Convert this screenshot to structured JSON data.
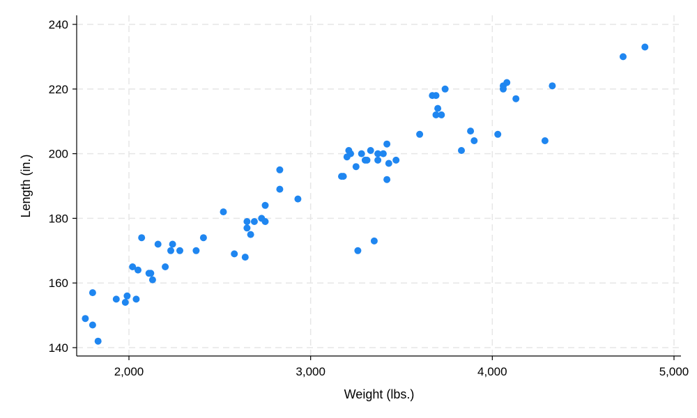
{
  "chart_data": {
    "type": "scatter",
    "title": "",
    "xlabel": "Weight (lbs.)",
    "ylabel": "Length (in.)",
    "xlim": [
      1700,
      5000
    ],
    "ylim": [
      137,
      242
    ],
    "xticks": [
      2000,
      3000,
      4000,
      5000
    ],
    "xtick_labels": [
      "2,000",
      "3,000",
      "4,000",
      "5,000"
    ],
    "yticks": [
      140,
      160,
      180,
      200,
      220,
      240
    ],
    "ytick_labels": [
      "140",
      "160",
      "180",
      "200",
      "220",
      "240"
    ],
    "grid": true,
    "point_color": "#1f86f0",
    "series": [
      {
        "points": [
          [
            1760,
            149
          ],
          [
            1800,
            157
          ],
          [
            1800,
            147
          ],
          [
            1830,
            142
          ],
          [
            1930,
            155
          ],
          [
            1980,
            154
          ],
          [
            1990,
            156
          ],
          [
            2020,
            165
          ],
          [
            2040,
            155
          ],
          [
            2050,
            164
          ],
          [
            2070,
            174
          ],
          [
            2110,
            163
          ],
          [
            2120,
            163
          ],
          [
            2130,
            161
          ],
          [
            2160,
            172
          ],
          [
            2200,
            165
          ],
          [
            2230,
            170
          ],
          [
            2240,
            172
          ],
          [
            2280,
            170
          ],
          [
            2370,
            170
          ],
          [
            2410,
            174
          ],
          [
            2520,
            182
          ],
          [
            2580,
            169
          ],
          [
            2640,
            168
          ],
          [
            2650,
            179
          ],
          [
            2650,
            177
          ],
          [
            2670,
            175
          ],
          [
            2690,
            179
          ],
          [
            2730,
            180
          ],
          [
            2750,
            179
          ],
          [
            2750,
            184
          ],
          [
            2830,
            195
          ],
          [
            2830,
            189
          ],
          [
            2930,
            186
          ],
          [
            3170,
            193
          ],
          [
            3180,
            193
          ],
          [
            3200,
            199
          ],
          [
            3210,
            201
          ],
          [
            3220,
            200
          ],
          [
            3250,
            196
          ],
          [
            3260,
            170
          ],
          [
            3280,
            200
          ],
          [
            3300,
            198
          ],
          [
            3310,
            198
          ],
          [
            3330,
            201
          ],
          [
            3350,
            173
          ],
          [
            3370,
            198
          ],
          [
            3370,
            200
          ],
          [
            3400,
            200
          ],
          [
            3420,
            192
          ],
          [
            3420,
            203
          ],
          [
            3430,
            197
          ],
          [
            3470,
            198
          ],
          [
            3600,
            206
          ],
          [
            3670,
            218
          ],
          [
            3690,
            218
          ],
          [
            3690,
            212
          ],
          [
            3700,
            214
          ],
          [
            3720,
            212
          ],
          [
            3740,
            220
          ],
          [
            3830,
            201
          ],
          [
            3880,
            207
          ],
          [
            3900,
            204
          ],
          [
            4030,
            206
          ],
          [
            4060,
            221
          ],
          [
            4060,
            220
          ],
          [
            4080,
            222
          ],
          [
            4130,
            217
          ],
          [
            4290,
            204
          ],
          [
            4330,
            221
          ],
          [
            4720,
            230
          ],
          [
            4840,
            233
          ]
        ]
      }
    ]
  }
}
